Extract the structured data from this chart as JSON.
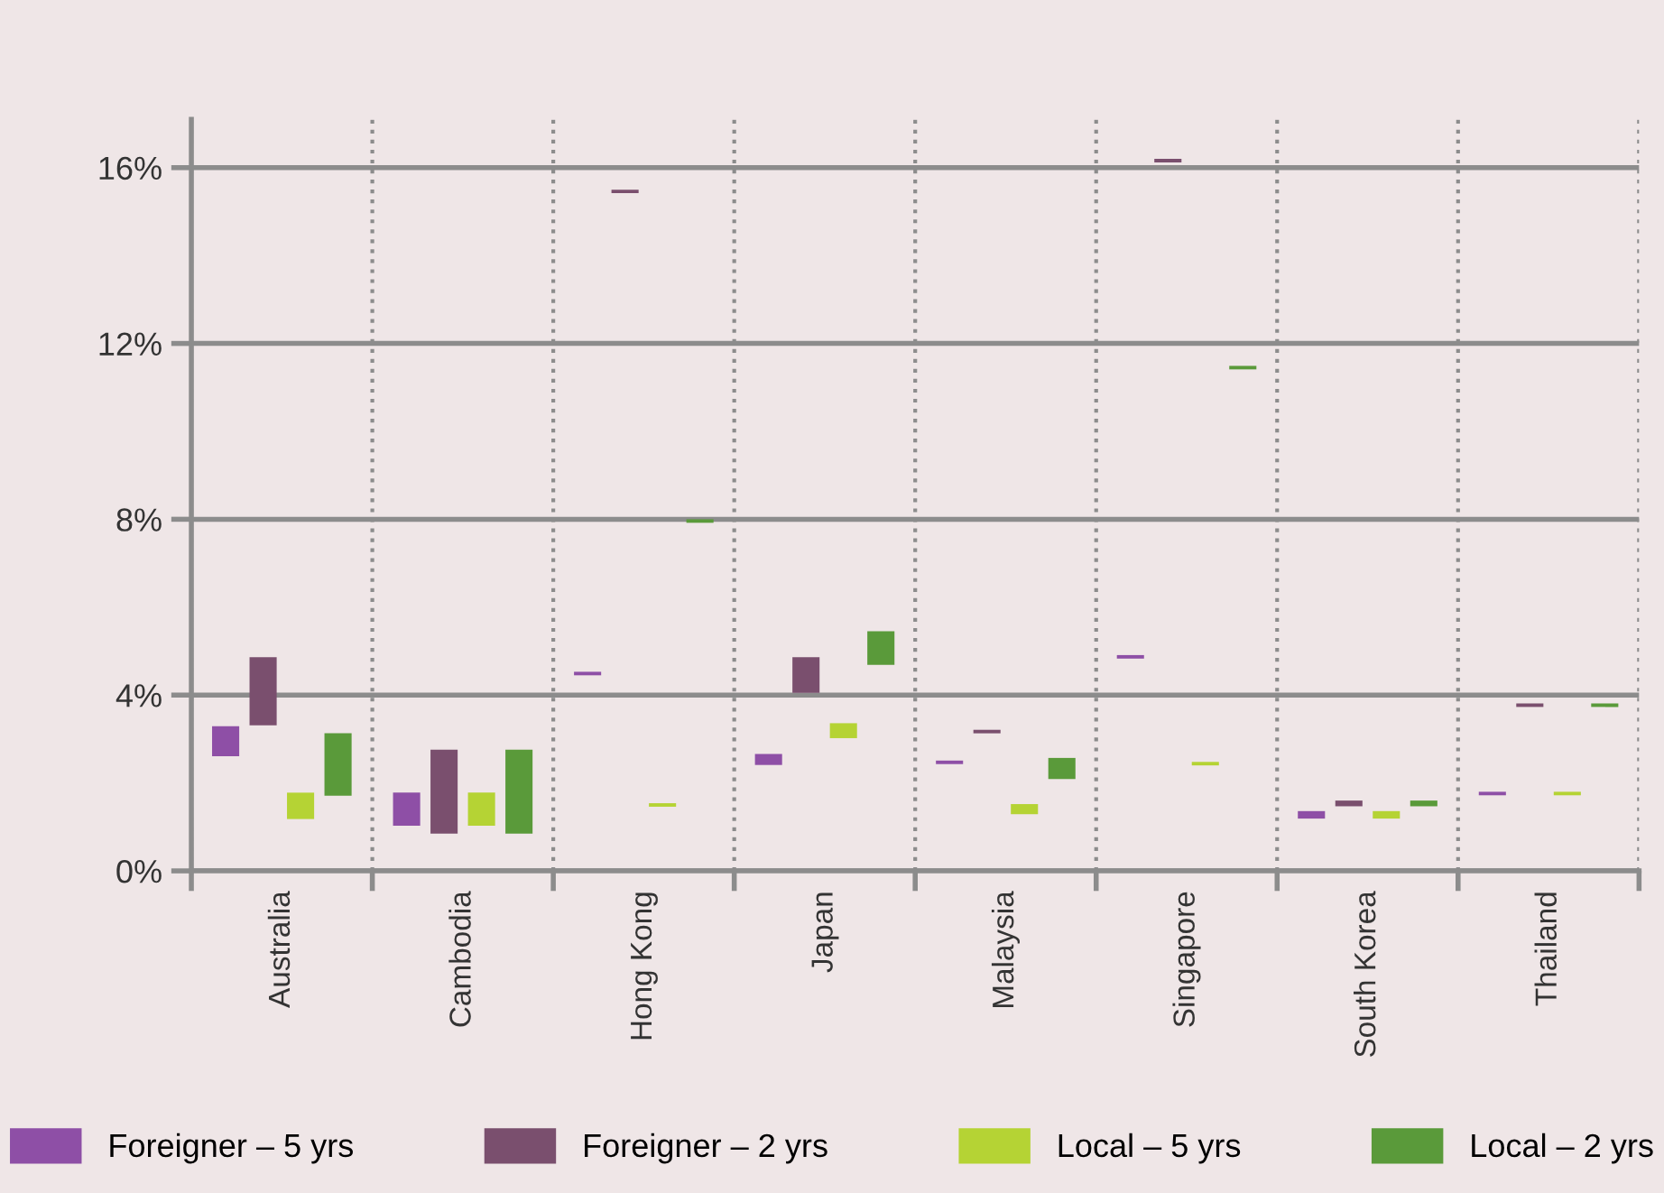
{
  "chart_data": {
    "type": "bar",
    "categories": [
      "Australia",
      "Cambodia",
      "Hong Kong",
      "Japan",
      "Malaysia",
      "Singapore",
      "South Korea",
      "Thailand"
    ],
    "series": [
      {
        "name": "Foreigner – 5 yrs",
        "color": "#8e4fa6",
        "base": [
          2.61,
          1.03,
          4.45,
          2.41,
          2.43,
          4.83,
          1.19,
          1.72
        ],
        "values": [
          0.68,
          0.75,
          0.08,
          0.25,
          0.08,
          0.08,
          0.17,
          0.08
        ]
      },
      {
        "name": "Foreigner – 2 yrs",
        "color": "#7a4f6e",
        "base": [
          3.31,
          0.85,
          15.42,
          4.05,
          3.13,
          16.12,
          1.47,
          3.73
        ],
        "values": [
          1.55,
          1.91,
          0.08,
          0.81,
          0.08,
          0.08,
          0.13,
          0.08
        ]
      },
      {
        "name": "Local – 5 yrs",
        "color": "#b5d334",
        "base": [
          1.18,
          1.03,
          1.46,
          3.02,
          1.29,
          2.4,
          1.19,
          1.72
        ],
        "values": [
          0.6,
          0.75,
          0.08,
          0.34,
          0.23,
          0.08,
          0.17,
          0.08
        ]
      },
      {
        "name": "Local – 2 yrs",
        "color": "#5a9a3a",
        "base": [
          1.71,
          0.85,
          7.92,
          4.69,
          2.09,
          11.41,
          1.47,
          3.73
        ],
        "values": [
          1.42,
          1.91,
          0.08,
          0.76,
          0.48,
          0.08,
          0.13,
          0.08
        ]
      }
    ],
    "ylim": [
      0,
      17.1
    ],
    "yticks": [
      {
        "value": 0,
        "label": "0%"
      },
      {
        "value": 4,
        "label": "4%"
      },
      {
        "value": 8,
        "label": "8%"
      },
      {
        "value": 12,
        "label": "12%"
      },
      {
        "value": 16,
        "label": "16%"
      }
    ],
    "grid": "y",
    "legend": "bottom"
  }
}
